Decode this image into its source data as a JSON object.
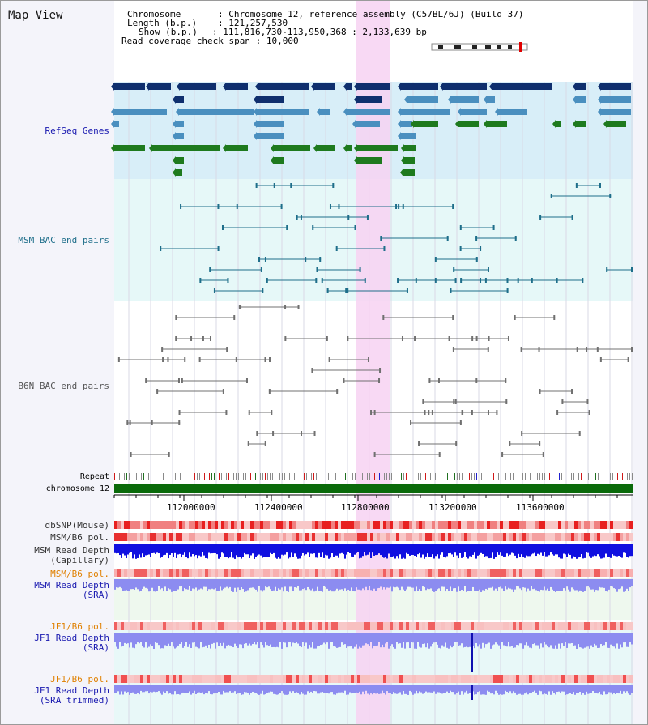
{
  "page": {
    "title": "Map View"
  },
  "info": {
    "chromosome_label": "Chromosome",
    "chromosome_value": "Chromosome 12, reference assembly (C57BL/6J) (Build 37)",
    "length_label": "Length (b.p.)",
    "length_value": "121,257,530",
    "show_label": "Show (b.p.)",
    "show_value": "111,816,730-113,950,368 : 2,133,639 bp",
    "span_label": "Read coverage check span",
    "span_value": "10,000"
  },
  "tracks": {
    "refseq": "RefSeq Genes",
    "msm_bac": "MSM BAC end pairs",
    "b6n_bac": "B6N BAC end pairs",
    "repeat": "Repeat",
    "chromosome": "chromosome 12",
    "dbsnp": "dbSNP(Mouse)",
    "msm_b6_pol": "MSM/B6 pol.",
    "msm_depth_cap_1": "MSM Read Depth",
    "msm_depth_cap_2": "(Capillary)",
    "msm_b6_pol_2": "MSM/B6 pol.",
    "msm_depth_sra_1": "MSM Read Depth",
    "msm_depth_sra_2": "(SRA)",
    "jf1_b6_pol": "JF1/B6 pol.",
    "jf1_depth_sra_1": "JF1 Read Depth",
    "jf1_depth_sra_2": "(SRA)",
    "jf1_b6_pol_2": "JF1/B6 pol.",
    "jf1_depth_trim_1": "JF1 Read Depth",
    "jf1_depth_trim_2": "(SRA trimmed)"
  },
  "axis": {
    "ticks": [
      "112000000",
      "112400000",
      "112800000",
      "113200000",
      "113600000"
    ]
  },
  "colors": {
    "refseq_dark": "#0f2f6e",
    "refseq_mid": "#4a8fbf",
    "refseq_green": "#1e7a1e",
    "refseq_bg": "#d8eef8",
    "msm_bac": "#1e6e8a",
    "b6n_bac": "#707070",
    "highlight": "#f7d2f2",
    "depth_blue": "#1010e0",
    "depth_lavender": "#8c8cf0",
    "pol_red": "#e83030",
    "chromosome_green": "#0a6a0a"
  }
}
